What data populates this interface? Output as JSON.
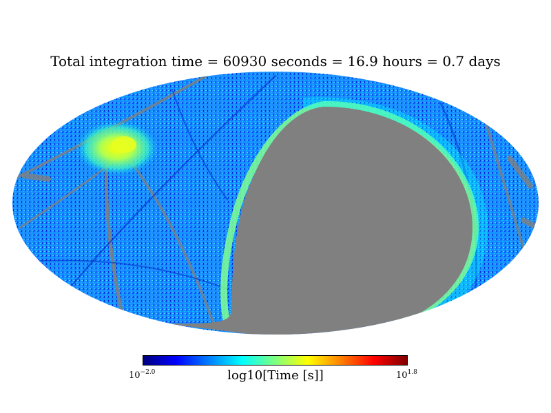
{
  "chart_data": {
    "type": "heatmap",
    "projection": "mollweide",
    "title": "Total integration time = 60930 seconds = 16.9 hours = 0.7 days",
    "total_seconds": 60930,
    "total_hours": 16.9,
    "total_days": 0.7,
    "colorbar": {
      "label": "log10[Time [s]]",
      "min_label": {
        "base": "10",
        "exp": "−2.0"
      },
      "max_label": {
        "base": "10",
        "exp": "1.8"
      },
      "range": [
        -2.0,
        1.8
      ],
      "colormap": "jet",
      "colors": [
        "#00007f",
        "#0000ff",
        "#007fff",
        "#00ffff",
        "#7fff7f",
        "#ffff00",
        "#ff7f00",
        "#ff0000",
        "#7f0000"
      ]
    },
    "unobserved_color": "#808080",
    "background_level": -0.8,
    "hotspot_level": 0.6,
    "scan_edge_level": 0.0
  }
}
